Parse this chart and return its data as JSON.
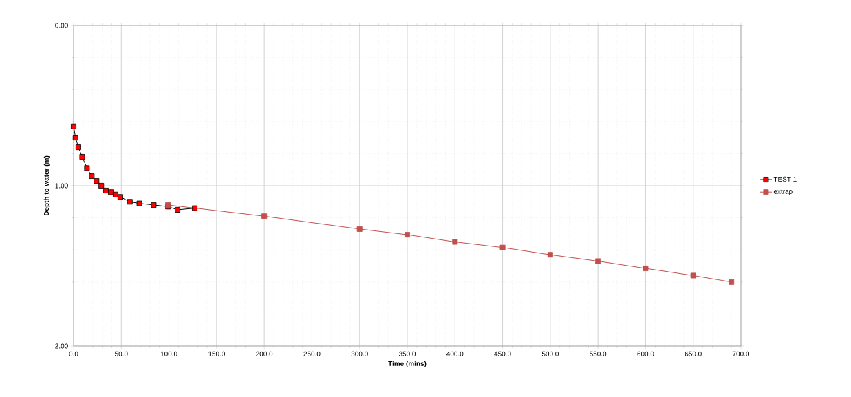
{
  "chart_data": {
    "type": "line",
    "xlabel": "Time (mins)",
    "ylabel": "Depth to water (m)",
    "xlim": [
      0,
      700
    ],
    "ylim": [
      2.0,
      0.0
    ],
    "xticks": [
      {
        "value": 0,
        "label": "0.0"
      },
      {
        "value": 50,
        "label": "50.0"
      },
      {
        "value": 100,
        "label": "100.0"
      },
      {
        "value": 150,
        "label": "150.0"
      },
      {
        "value": 200,
        "label": "200.0"
      },
      {
        "value": 250,
        "label": "250.0"
      },
      {
        "value": 300,
        "label": "300.0"
      },
      {
        "value": 350,
        "label": "350.0"
      },
      {
        "value": 400,
        "label": "400.0"
      },
      {
        "value": 450,
        "label": "450.0"
      },
      {
        "value": 500,
        "label": "500.0"
      },
      {
        "value": 550,
        "label": "550.0"
      },
      {
        "value": 600,
        "label": "600.0"
      },
      {
        "value": 650,
        "label": "650.0"
      },
      {
        "value": 700,
        "label": "700.0"
      }
    ],
    "yticks": [
      {
        "value": 0,
        "label": "0.00"
      },
      {
        "value": 1,
        "label": "1.00"
      },
      {
        "value": 2,
        "label": "2.00"
      }
    ],
    "grid": true,
    "legend": "right",
    "marker": "square",
    "series": [
      {
        "name": "TEST 1",
        "color": "#ff0000",
        "x": [
          0,
          2,
          5,
          9,
          14,
          19,
          24,
          29,
          34,
          39,
          44,
          49,
          59,
          69,
          84,
          99,
          109,
          127
        ],
        "values": [
          0.63,
          0.7,
          0.76,
          0.82,
          0.89,
          0.94,
          0.97,
          1.0,
          1.03,
          1.04,
          1.055,
          1.07,
          1.1,
          1.11,
          1.12,
          1.13,
          1.15,
          1.14
        ]
      },
      {
        "name": "extrap",
        "color": "#c0504d",
        "x": [
          99,
          200,
          300,
          350,
          400,
          450,
          500,
          550,
          600,
          650,
          690
        ],
        "values": [
          1.12,
          1.19,
          1.27,
          1.305,
          1.35,
          1.385,
          1.43,
          1.47,
          1.515,
          1.56,
          1.6
        ]
      }
    ]
  }
}
